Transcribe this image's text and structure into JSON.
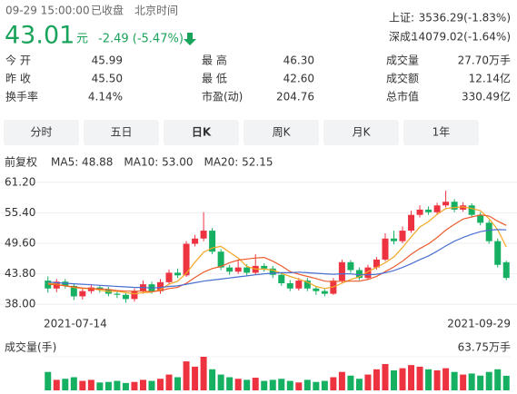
{
  "header": {
    "time": "09-29 15:00:00",
    "status": "已收盘",
    "timezone": "北京时间",
    "price": "43.01",
    "unit": "元",
    "change": "-2.49 (-5.47%)",
    "color": "#1aa35a"
  },
  "indices": [
    {
      "label": "上证:",
      "value": "3536.29(-1.83%)"
    },
    {
      "label": "深成:",
      "value": "14079.02(-1.64%)"
    }
  ],
  "stats": [
    [
      {
        "label": "今 开",
        "value": "45.99",
        "color": "#e8343c"
      },
      {
        "label": "最 高",
        "value": "46.30",
        "color": "#e8343c"
      },
      {
        "label": "成交量",
        "value": "27.70万手",
        "color": "#333"
      }
    ],
    [
      {
        "label": "昨 收",
        "value": "45.50",
        "color": "#333"
      },
      {
        "label": "最 低",
        "value": "42.60",
        "color": "#1aa35a"
      },
      {
        "label": "成交额",
        "value": "12.14亿",
        "color": "#333"
      }
    ],
    [
      {
        "label": "换手率",
        "value": "4.14%",
        "color": "#333"
      },
      {
        "label": "市盈(动)",
        "value": "204.76",
        "color": "#333"
      },
      {
        "label": "总市值",
        "value": "330.49亿",
        "color": "#333"
      }
    ]
  ],
  "tabs": [
    "分时",
    "五日",
    "日K",
    "周K",
    "月K",
    "1年"
  ],
  "active_tab": 2,
  "chart_data": {
    "type": "candlestick",
    "adjust_label": "前复权",
    "up_color": "#ee3340",
    "down_color": "#16b062",
    "categories": [
      "2021-07-14",
      null,
      null,
      null,
      null,
      null,
      null,
      null,
      null,
      null,
      null,
      null,
      null,
      null,
      null,
      null,
      null,
      null,
      null,
      null,
      null,
      null,
      null,
      null,
      null,
      null,
      null,
      null,
      null,
      null,
      null,
      null,
      null,
      null,
      null,
      null,
      null,
      null,
      null,
      null,
      null,
      null,
      null,
      null,
      null,
      null,
      null,
      null,
      null,
      null,
      null,
      null,
      null,
      "2021-09-29"
    ],
    "open": [
      42.5,
      41.0,
      42.3,
      41.5,
      39.5,
      40.5,
      41.2,
      40.8,
      40.0,
      39.8,
      39.0,
      40.5,
      41.8,
      40.5,
      42.2,
      44.0,
      43.5,
      49.5,
      50.5,
      52.0,
      48.0,
      45.0,
      44.2,
      45.0,
      44.0,
      45.3,
      44.8,
      43.6,
      42.0,
      41.0,
      42.5,
      41.0,
      40.5,
      40.0,
      42.5,
      46.0,
      44.5,
      43.0,
      45.0,
      46.5,
      50.5,
      50.0,
      52.0,
      55.0,
      56.0,
      55.5,
      56.8,
      57.5,
      56.0,
      56.8,
      55.0,
      53.5,
      50.0,
      45.99
    ],
    "high": [
      43.3,
      42.8,
      42.8,
      41.9,
      41.0,
      41.7,
      41.6,
      41.3,
      40.5,
      40.3,
      41.0,
      42.5,
      42.3,
      42.8,
      44.6,
      44.8,
      50.0,
      51.2,
      55.5,
      52.5,
      48.5,
      45.5,
      46.5,
      45.6,
      47.5,
      45.8,
      45.3,
      44.0,
      42.6,
      43.0,
      43.0,
      41.5,
      40.9,
      43.0,
      46.5,
      46.4,
      45.0,
      45.5,
      47.0,
      51.5,
      52.0,
      52.8,
      55.8,
      56.8,
      56.6,
      57.3,
      59.6,
      58.0,
      57.4,
      57.2,
      55.5,
      54.0,
      50.5,
      46.3
    ],
    "low": [
      40.2,
      40.3,
      41.0,
      38.8,
      38.9,
      40.0,
      40.2,
      39.5,
      39.2,
      38.3,
      38.5,
      40.0,
      40.0,
      40.0,
      41.8,
      43.0,
      43.2,
      49.0,
      50.0,
      47.5,
      44.5,
      43.6,
      43.8,
      43.5,
      43.6,
      44.2,
      43.0,
      41.5,
      40.5,
      40.6,
      40.5,
      39.8,
      39.5,
      39.8,
      42.0,
      44.0,
      42.6,
      42.6,
      44.6,
      46.2,
      49.4,
      49.6,
      51.6,
      54.5,
      55.0,
      55.0,
      56.4,
      55.5,
      55.6,
      54.6,
      53.0,
      49.5,
      45.0,
      42.6
    ],
    "close": [
      41.0,
      42.3,
      41.5,
      39.5,
      40.5,
      41.2,
      40.8,
      40.0,
      39.8,
      39.0,
      40.5,
      41.8,
      40.5,
      42.2,
      44.0,
      43.5,
      49.5,
      50.5,
      52.0,
      48.0,
      45.0,
      44.2,
      45.0,
      44.0,
      45.3,
      44.8,
      43.6,
      42.0,
      41.0,
      42.5,
      41.0,
      40.5,
      40.0,
      42.5,
      46.0,
      44.5,
      43.0,
      45.0,
      46.5,
      50.5,
      50.0,
      52.0,
      55.0,
      56.0,
      55.5,
      56.8,
      57.5,
      56.0,
      56.8,
      55.0,
      53.5,
      50.0,
      45.5,
      43.01
    ],
    "series": [
      {
        "name": "MA5: 48.88",
        "color": "#f5a623",
        "values": [
          42.0,
          41.8,
          41.5,
          41.2,
          41.0,
          41.0,
          40.7,
          40.4,
          40.5,
          40.2,
          40.0,
          40.2,
          40.3,
          40.8,
          41.8,
          42.4,
          43.9,
          46.0,
          47.9,
          48.7,
          49.0,
          47.9,
          46.8,
          45.2,
          44.7,
          44.7,
          44.5,
          43.9,
          43.3,
          42.8,
          42.2,
          41.4,
          41.0,
          41.3,
          42.0,
          42.7,
          43.2,
          44.2,
          45.0,
          45.9,
          47.0,
          48.8,
          50.8,
          52.7,
          53.7,
          55.1,
          56.2,
          56.4,
          56.5,
          56.2,
          55.8,
          54.3,
          52.2,
          48.88
        ]
      },
      {
        "name": "MA10: 53.00",
        "color": "#ec5b2c",
        "values": [
          41.8,
          41.7,
          41.5,
          41.3,
          41.1,
          41.0,
          40.9,
          40.8,
          40.6,
          40.5,
          40.5,
          40.5,
          40.4,
          40.6,
          41.0,
          41.2,
          42.0,
          43.1,
          44.1,
          44.8,
          45.2,
          45.9,
          46.4,
          46.6,
          46.8,
          46.9,
          46.2,
          45.3,
          44.2,
          43.7,
          43.3,
          42.9,
          42.4,
          42.3,
          42.4,
          42.4,
          42.4,
          42.7,
          43.3,
          44.2,
          45.1,
          46.2,
          47.5,
          48.6,
          49.5,
          50.7,
          52.1,
          53.2,
          54.2,
          54.6,
          55.0,
          54.8,
          53.8,
          53.0
        ]
      },
      {
        "name": "MA20: 52.15",
        "color": "#4a6fd0",
        "values": [
          42.2,
          42.1,
          42.0,
          41.9,
          41.8,
          41.7,
          41.6,
          41.5,
          41.4,
          41.3,
          41.2,
          41.2,
          41.1,
          41.2,
          41.4,
          41.5,
          41.8,
          42.1,
          42.4,
          42.6,
          42.8,
          43.0,
          43.2,
          43.4,
          43.6,
          43.8,
          43.9,
          44.0,
          44.0,
          44.1,
          44.0,
          43.9,
          43.8,
          43.7,
          43.8,
          43.8,
          43.6,
          43.6,
          43.7,
          44.0,
          44.4,
          45.0,
          45.7,
          46.5,
          47.2,
          48.1,
          49.1,
          50.0,
          50.7,
          51.3,
          51.8,
          52.1,
          52.2,
          52.15
        ]
      }
    ],
    "ylim": [
      36.3,
      62.2
    ],
    "yticks": [
      {
        "value": 61.2,
        "label": "61.20"
      },
      {
        "value": 55.4,
        "label": "55.40"
      },
      {
        "value": 49.6,
        "label": "49.60"
      },
      {
        "value": 43.8,
        "label": "43.80"
      },
      {
        "value": 38.0,
        "label": "38.00"
      }
    ],
    "grid": true,
    "volume": [
      35,
      20,
      22,
      25,
      18,
      20,
      15,
      16,
      18,
      14,
      16,
      20,
      18,
      22,
      30,
      25,
      55,
      45,
      63.75,
      40,
      30,
      25,
      22,
      20,
      24,
      18,
      20,
      22,
      18,
      15,
      20,
      16,
      18,
      25,
      35,
      28,
      22,
      30,
      40,
      50,
      38,
      42,
      48,
      45,
      40,
      38,
      42,
      35,
      30,
      32,
      28,
      35,
      40,
      27.7
    ],
    "volume_label": "成交量(手)",
    "volume_ylim": [
      0,
      63.75
    ],
    "volume_max_tick": {
      "value": 63.75,
      "label": "63.75万手"
    }
  }
}
